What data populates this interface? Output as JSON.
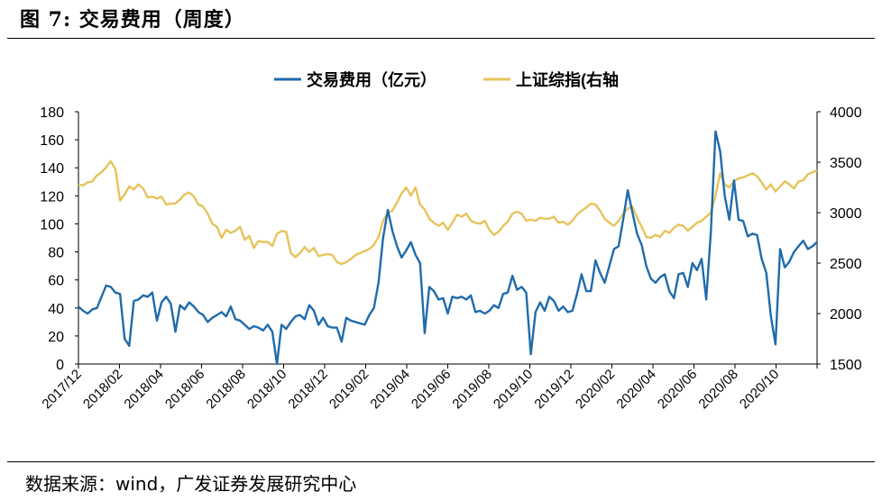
{
  "header": {
    "title": "图 7: 交易费用（周度）"
  },
  "footer": {
    "source": "数据来源：wind，广发证券发展研究中心"
  },
  "colors": {
    "fee": "#1f6bab",
    "index": "#e6c35c",
    "axis": "#000000"
  },
  "chart_data": {
    "type": "line",
    "legend": [
      "交易费用（亿元）",
      "上证综指(右轴"
    ],
    "yleft": {
      "min": 0,
      "max": 180,
      "ticks": [
        0,
        20,
        40,
        60,
        80,
        100,
        120,
        140,
        160,
        180
      ]
    },
    "yright": {
      "min": 1500,
      "max": 4000,
      "ticks": [
        1500,
        2000,
        2500,
        3000,
        3500,
        4000
      ]
    },
    "x_tick_labels": [
      "2017/12",
      "2018/02",
      "2018/04",
      "2018/06",
      "2018/08",
      "2018/10",
      "2018/12",
      "2019/02",
      "2019/04",
      "2019/06",
      "2019/08",
      "2019/10",
      "2019/12",
      "2020/02",
      "2020/04",
      "2020/06",
      "2020/08",
      "2020/10"
    ],
    "x_period": "weekly, 2017/12 – 2020/12",
    "series": [
      {
        "name": "交易费用（亿元）",
        "axis": "left",
        "values": [
          41,
          38,
          36,
          39,
          40,
          48,
          56,
          55,
          51,
          50,
          18,
          13,
          45,
          46,
          49,
          48,
          51,
          31,
          44,
          48,
          43,
          23,
          42,
          39,
          44,
          41,
          37,
          35,
          30,
          33,
          35,
          37,
          34,
          41,
          32,
          31,
          28,
          25,
          27,
          26,
          24,
          28,
          23,
          0,
          28,
          25,
          30,
          34,
          35,
          32,
          42,
          38,
          28,
          33,
          27,
          26,
          26,
          16,
          33,
          31,
          30,
          29,
          28,
          35,
          40,
          58,
          90,
          110,
          95,
          84,
          76,
          81,
          87,
          78,
          72,
          22,
          55,
          52,
          46,
          47,
          36,
          48,
          47,
          48,
          46,
          49,
          37,
          38,
          36,
          38,
          42,
          40,
          50,
          51,
          63,
          53,
          55,
          51,
          7,
          37,
          44,
          38,
          48,
          45,
          38,
          41,
          37,
          38,
          50,
          64,
          52,
          52,
          74,
          65,
          58,
          70,
          82,
          84,
          103,
          124,
          108,
          93,
          85,
          70,
          61,
          58,
          62,
          64,
          52,
          47,
          64,
          65,
          55,
          72,
          67,
          75,
          46,
          95,
          166,
          152,
          120,
          103,
          131,
          103,
          102,
          91,
          93,
          92,
          75,
          65,
          34,
          14,
          82,
          69,
          73,
          80,
          84,
          88,
          82,
          84,
          87
        ]
      },
      {
        "name": "上证综指(右轴",
        "axis": "right",
        "values": [
          3280,
          3270,
          3300,
          3310,
          3370,
          3400,
          3450,
          3510,
          3430,
          3120,
          3180,
          3260,
          3230,
          3280,
          3240,
          3150,
          3160,
          3140,
          3160,
          3080,
          3090,
          3090,
          3130,
          3180,
          3200,
          3160,
          3080,
          3060,
          2990,
          2890,
          2860,
          2750,
          2830,
          2800,
          2820,
          2860,
          2730,
          2770,
          2650,
          2720,
          2710,
          2710,
          2670,
          2790,
          2820,
          2810,
          2600,
          2560,
          2600,
          2660,
          2610,
          2650,
          2570,
          2580,
          2590,
          2580,
          2510,
          2490,
          2510,
          2540,
          2580,
          2600,
          2620,
          2640,
          2680,
          2760,
          2920,
          3000,
          3020,
          3100,
          3190,
          3250,
          3170,
          3250,
          3080,
          3030,
          2940,
          2900,
          2870,
          2900,
          2830,
          2900,
          2980,
          2960,
          2990,
          2920,
          2900,
          2890,
          2920,
          2830,
          2780,
          2810,
          2870,
          2910,
          2990,
          3010,
          2990,
          2920,
          2930,
          2920,
          2950,
          2940,
          2940,
          2960,
          2900,
          2910,
          2880,
          2920,
          2980,
          3020,
          3050,
          3090,
          3080,
          3020,
          2940,
          2900,
          2870,
          2920,
          2990,
          3040,
          3060,
          2950,
          2860,
          2760,
          2750,
          2780,
          2760,
          2820,
          2800,
          2850,
          2880,
          2870,
          2820,
          2860,
          2900,
          2920,
          2960,
          3000,
          3170,
          3390,
          3280,
          3250,
          3310,
          3340,
          3350,
          3370,
          3390,
          3360,
          3300,
          3230,
          3280,
          3210,
          3260,
          3310,
          3280,
          3240,
          3310,
          3320,
          3380,
          3400,
          3420
        ]
      }
    ]
  }
}
